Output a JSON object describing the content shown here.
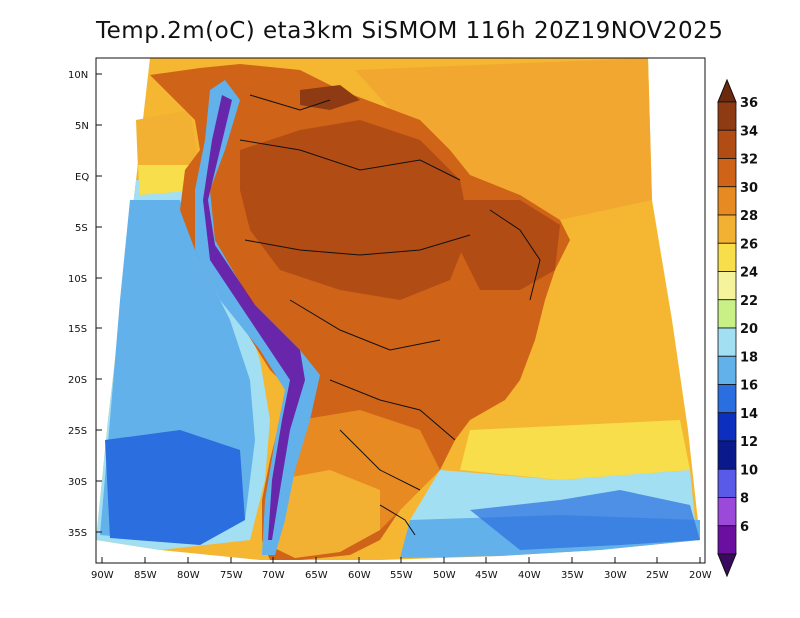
{
  "title": "Temp.2m(oC) eta3km SiSMOM 116h 20Z19NOV2025",
  "lat_ticks": [
    "10N",
    "5N",
    "EQ",
    "5S",
    "10S",
    "15S",
    "20S",
    "25S",
    "30S",
    "35S"
  ],
  "lon_ticks": [
    "90W",
    "85W",
    "80W",
    "75W",
    "70W",
    "65W",
    "60W",
    "55W",
    "50W",
    "45W",
    "40W",
    "35W",
    "30W",
    "25W",
    "20W"
  ],
  "colorbar": {
    "labels": [
      "36",
      "34",
      "32",
      "30",
      "28",
      "26",
      "24",
      "22",
      "20",
      "18",
      "16",
      "14",
      "12",
      "10",
      "8",
      "6"
    ],
    "colors": [
      "#6b2a0e",
      "#8e3a12",
      "#b24c15",
      "#cf6318",
      "#e88a22",
      "#f2b133",
      "#f7de4a",
      "#f5f39c",
      "#c8f087",
      "#a2dff2",
      "#62b1ea",
      "#2b6ee0",
      "#0c2fbf",
      "#0a1a8c",
      "#5a5ae8",
      "#9a49d8",
      "#6a0fa0",
      "#3a0a60"
    ]
  }
}
